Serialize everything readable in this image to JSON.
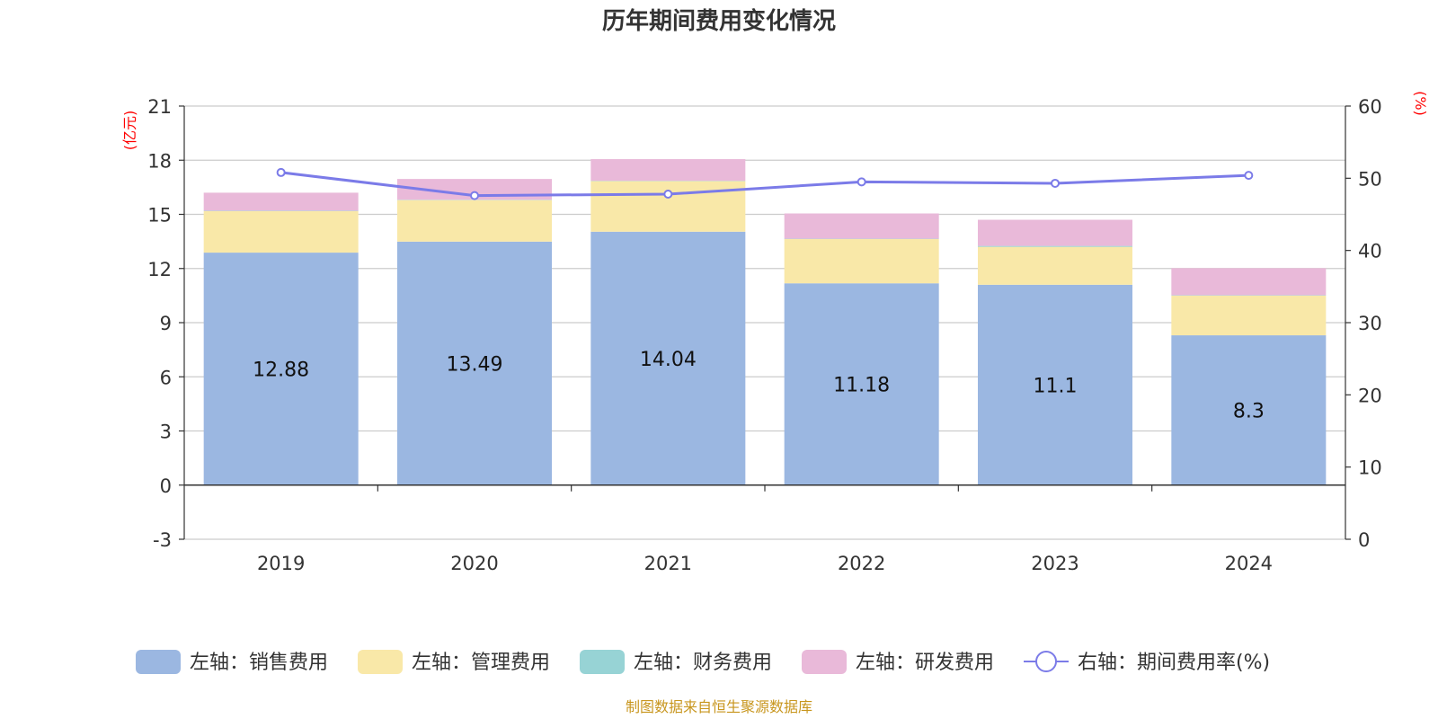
{
  "chart_data": {
    "type": "bar",
    "stacked": true,
    "title": "历年期间费用变化情况",
    "categories": [
      "2019",
      "2020",
      "2021",
      "2022",
      "2023",
      "2024"
    ],
    "left_axis": {
      "unit": "(亿元)",
      "range": [
        -3,
        21
      ],
      "ticks": [
        -3,
        0,
        3,
        6,
        9,
        12,
        15,
        18,
        21
      ]
    },
    "right_axis": {
      "unit": "(%)",
      "range": [
        0,
        60
      ],
      "ticks": [
        0,
        10,
        20,
        30,
        40,
        50,
        60
      ]
    },
    "series": [
      {
        "name": "左轴：销售费用",
        "axis": "left",
        "color": "#9bb7e1",
        "values": [
          12.88,
          13.49,
          14.04,
          11.18,
          11.1,
          8.3
        ],
        "labels": [
          "12.88",
          "13.49",
          "14.04",
          "11.18",
          "11.1",
          "8.3"
        ]
      },
      {
        "name": "左轴：管理费用",
        "axis": "left",
        "color": "#f9e8a8",
        "values": [
          2.3,
          2.3,
          2.8,
          2.45,
          2.1,
          2.2
        ]
      },
      {
        "name": "左轴：财务费用",
        "axis": "left",
        "color": "#97d3d5",
        "values": [
          0.02,
          0.02,
          0.02,
          0.02,
          0.05,
          0.02
        ]
      },
      {
        "name": "左轴：研发费用",
        "axis": "left",
        "color": "#e9b9d9",
        "values": [
          1.0,
          1.15,
          1.2,
          1.4,
          1.45,
          1.5
        ]
      },
      {
        "name": "右轴：期间费用率(%)",
        "axis": "right",
        "type": "line",
        "color": "#7b7be8",
        "values": [
          50.8,
          47.6,
          47.8,
          49.5,
          49.3,
          50.4
        ]
      }
    ],
    "grid": true,
    "legend_position": "bottom",
    "source_note": "制图数据来自恒生聚源数据库"
  }
}
